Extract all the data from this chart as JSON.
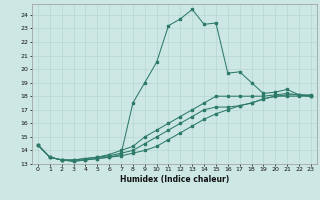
{
  "xlabel": "Humidex (Indice chaleur)",
  "background_color": "#cde8e4",
  "grid_color": "#b8d8d2",
  "line_color": "#2d7a6a",
  "xlim": [
    -0.5,
    23.5
  ],
  "ylim": [
    13.0,
    24.8
  ],
  "yticks": [
    13,
    14,
    15,
    16,
    17,
    18,
    19,
    20,
    21,
    22,
    23,
    24
  ],
  "xticks": [
    0,
    1,
    2,
    3,
    4,
    5,
    6,
    7,
    8,
    9,
    10,
    11,
    12,
    13,
    14,
    15,
    16,
    17,
    18,
    19,
    20,
    21,
    22,
    23
  ],
  "series": [
    {
      "x": [
        0,
        1,
        2,
        3,
        4,
        5,
        6,
        7,
        8,
        9,
        10,
        11,
        12,
        13,
        14,
        15,
        16,
        17,
        18,
        19,
        20,
        21,
        22,
        23
      ],
      "y": [
        14.4,
        13.5,
        13.3,
        13.2,
        13.3,
        13.4,
        13.5,
        13.7,
        17.5,
        19.0,
        20.5,
        23.2,
        23.7,
        24.4,
        23.3,
        23.4,
        19.7,
        19.8,
        19.0,
        18.2,
        18.3,
        18.5,
        18.1,
        18.1
      ]
    },
    {
      "x": [
        0,
        1,
        2,
        3,
        4,
        5,
        6,
        7,
        8,
        9,
        10,
        11,
        12,
        13,
        14,
        15,
        16,
        17,
        18,
        19,
        20,
        21,
        22,
        23
      ],
      "y": [
        14.4,
        13.5,
        13.3,
        13.3,
        13.4,
        13.5,
        13.7,
        14.0,
        14.3,
        15.0,
        15.5,
        16.0,
        16.5,
        17.0,
        17.5,
        18.0,
        18.0,
        18.0,
        18.0,
        18.0,
        18.1,
        18.2,
        18.1,
        18.0
      ]
    },
    {
      "x": [
        0,
        1,
        2,
        3,
        4,
        5,
        6,
        7,
        8,
        9,
        10,
        11,
        12,
        13,
        14,
        15,
        16,
        17,
        18,
        19,
        20,
        21,
        22,
        23
      ],
      "y": [
        14.4,
        13.5,
        13.3,
        13.3,
        13.4,
        13.5,
        13.6,
        13.8,
        14.0,
        14.5,
        15.0,
        15.5,
        16.0,
        16.5,
        17.0,
        17.2,
        17.2,
        17.3,
        17.5,
        17.8,
        18.0,
        18.1,
        18.1,
        18.0
      ]
    },
    {
      "x": [
        0,
        1,
        2,
        3,
        4,
        5,
        6,
        7,
        8,
        9,
        10,
        11,
        12,
        13,
        14,
        15,
        16,
        17,
        18,
        19,
        20,
        21,
        22,
        23
      ],
      "y": [
        14.4,
        13.5,
        13.3,
        13.2,
        13.3,
        13.4,
        13.5,
        13.6,
        13.8,
        14.0,
        14.3,
        14.8,
        15.3,
        15.8,
        16.3,
        16.7,
        17.0,
        17.3,
        17.5,
        17.8,
        18.0,
        18.0,
        18.0,
        18.0
      ]
    }
  ]
}
